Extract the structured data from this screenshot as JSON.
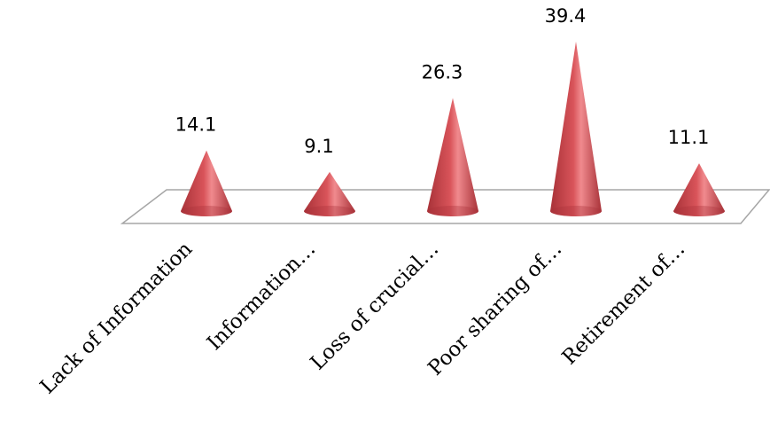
{
  "chart_data": {
    "type": "bar",
    "shape": "cone",
    "categories": [
      "Lack of Information",
      "Information…",
      "Loss of crucial…",
      "Poor sharing of…",
      "Retirement of…"
    ],
    "values": [
      14.1,
      9.1,
      26.3,
      39.4,
      11.1
    ],
    "value_labels": [
      "14.1",
      "9.1",
      "26.3",
      "39.4",
      "11.1"
    ],
    "ylim": [
      0,
      39.4
    ],
    "legend": "none",
    "grid": false,
    "colors": {
      "cone_dark": "#a83238",
      "cone_mid": "#d9545a",
      "cone_light": "#f08a8e",
      "floor_stroke": "#a6a6a6"
    }
  }
}
